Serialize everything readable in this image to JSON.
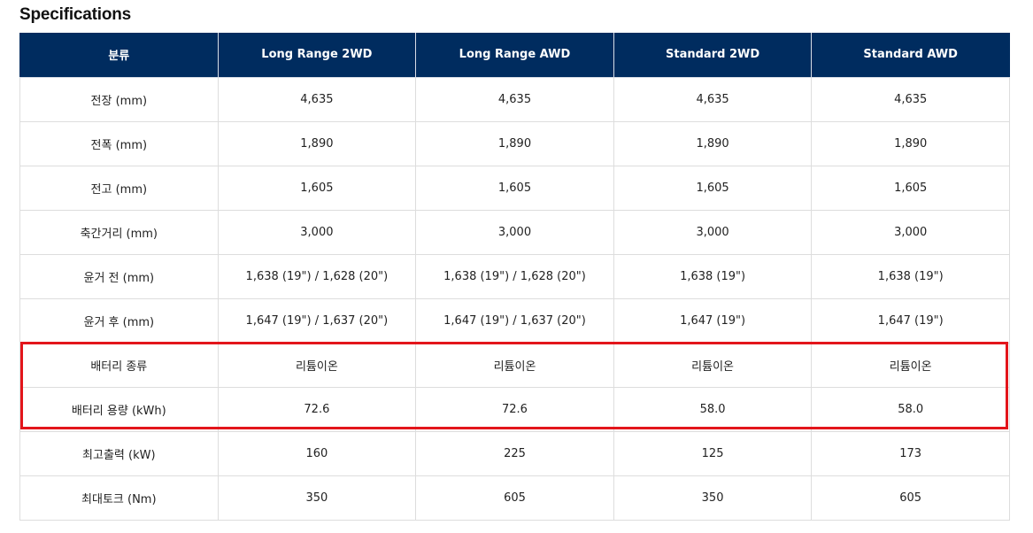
{
  "title": "Specifications",
  "table": {
    "headers": [
      "분류",
      "Long Range 2WD",
      "Long Range AWD",
      "Standard 2WD",
      "Standard AWD"
    ],
    "rows": [
      [
        "전장 (mm)",
        "4,635",
        "4,635",
        "4,635",
        "4,635"
      ],
      [
        "전폭 (mm)",
        "1,890",
        "1,890",
        "1,890",
        "1,890"
      ],
      [
        "전고 (mm)",
        "1,605",
        "1,605",
        "1,605",
        "1,605"
      ],
      [
        "축간거리 (mm)",
        "3,000",
        "3,000",
        "3,000",
        "3,000"
      ],
      [
        "윤거 전 (mm)",
        "1,638 (19\") / 1,628 (20\")",
        "1,638 (19\") / 1,628 (20\")",
        "1,638 (19\")",
        "1,638 (19\")"
      ],
      [
        "윤거 후 (mm)",
        "1,647 (19\") / 1,637 (20\")",
        "1,647 (19\") / 1,637 (20\")",
        "1,647 (19\")",
        "1,647 (19\")"
      ],
      [
        "배터리 종류",
        "리튬이온",
        "리튬이온",
        "리튬이온",
        "리튬이온"
      ],
      [
        "배터리 용량 (kWh)",
        "72.6",
        "72.6",
        "58.0",
        "58.0"
      ],
      [
        "최고출력 (kW)",
        "160",
        "225",
        "125",
        "173"
      ],
      [
        "최대토크 (Nm)",
        "350",
        "605",
        "350",
        "605"
      ]
    ],
    "highlighted_rows": [
      "배터리 종류",
      "배터리 용량 (kWh)"
    ]
  },
  "colors": {
    "header_bg": "#002c5f",
    "header_text": "#ffffff",
    "highlight_border": "#e3151b",
    "cell_border": "#dddddd"
  }
}
